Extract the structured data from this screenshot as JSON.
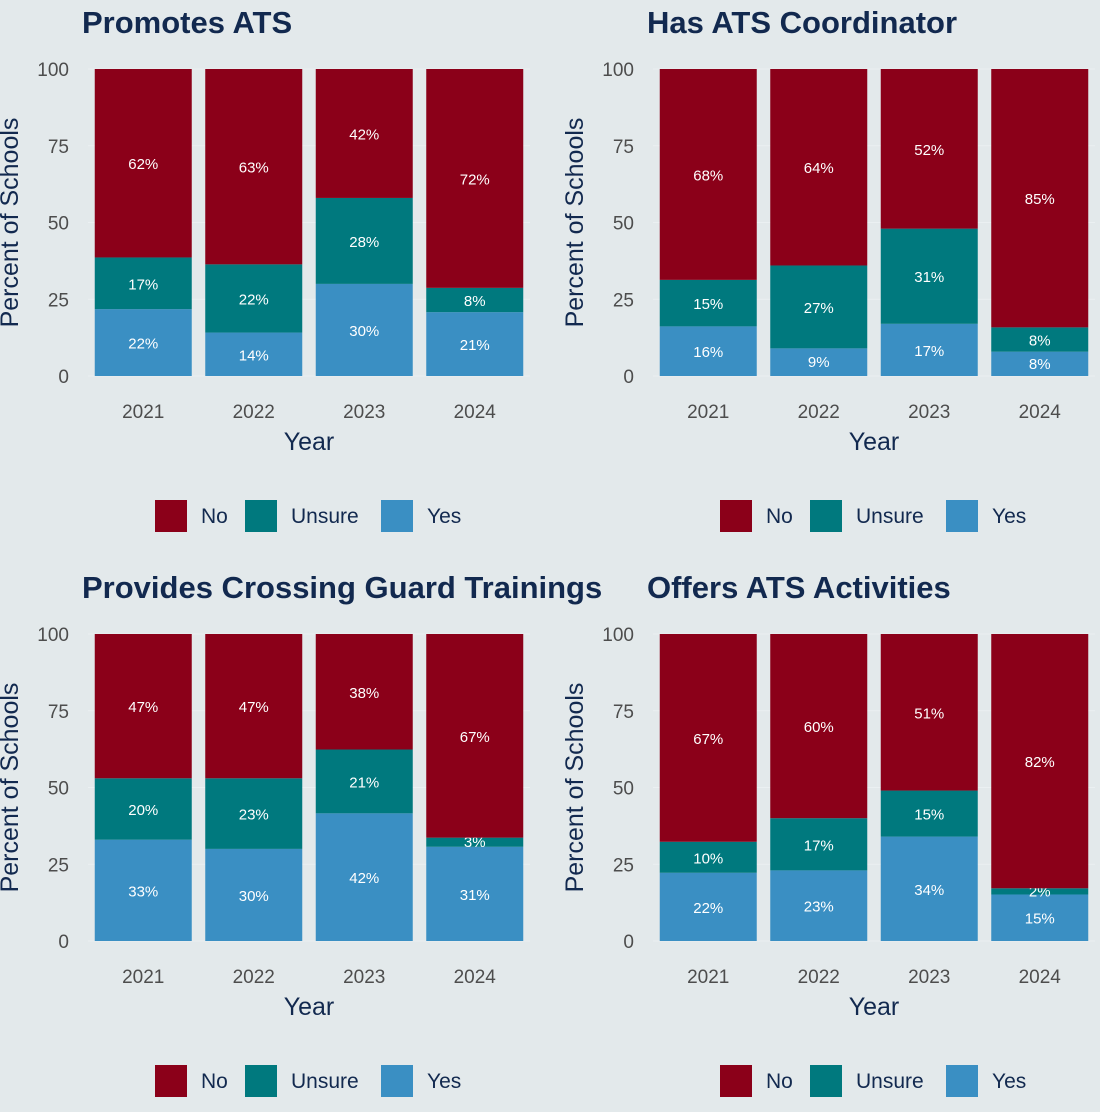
{
  "colors": {
    "No": "#8b0019",
    "Unsure": "#00797e",
    "Yes": "#3a8fc3",
    "background": "#e3e9eb",
    "title": "#12294f"
  },
  "legend_labels": [
    "No",
    "Unsure",
    "Yes"
  ],
  "chart_data": [
    {
      "type": "bar",
      "stacked": true,
      "title": "Promotes ATS",
      "xlabel": "Year",
      "ylabel": "Percent of Schools",
      "ylim": [
        0,
        100
      ],
      "yticks": [
        "0",
        "25",
        "50",
        "75",
        "100"
      ],
      "categories": [
        "2021",
        "2022",
        "2023",
        "2024"
      ],
      "series": [
        {
          "name": "Yes",
          "values": [
            22,
            14,
            30,
            21
          ],
          "labels": [
            "22%",
            "14%",
            "30%",
            "21%"
          ]
        },
        {
          "name": "Unsure",
          "values": [
            17,
            22,
            28,
            8
          ],
          "labels": [
            "17%",
            "22%",
            "28%",
            "8%"
          ]
        },
        {
          "name": "No",
          "values": [
            62,
            63,
            42,
            72
          ],
          "labels": [
            "62%",
            "63%",
            "42%",
            "72%"
          ]
        }
      ],
      "legend": "bottom"
    },
    {
      "type": "bar",
      "stacked": true,
      "title": "Has ATS Coordinator",
      "xlabel": "Year",
      "ylabel": "Percent of Schools",
      "ylim": [
        0,
        100
      ],
      "yticks": [
        "0",
        "25",
        "50",
        "75",
        "100"
      ],
      "categories": [
        "2021",
        "2022",
        "2023",
        "2024"
      ],
      "series": [
        {
          "name": "Yes",
          "values": [
            16,
            9,
            17,
            8
          ],
          "labels": [
            "16%",
            "9%",
            "17%",
            "8%"
          ]
        },
        {
          "name": "Unsure",
          "values": [
            15,
            27,
            31,
            8
          ],
          "labels": [
            "15%",
            "27%",
            "31%",
            "8%"
          ]
        },
        {
          "name": "No",
          "values": [
            68,
            64,
            52,
            85
          ],
          "labels": [
            "68%",
            "64%",
            "52%",
            "85%"
          ]
        }
      ],
      "legend": "bottom"
    },
    {
      "type": "bar",
      "stacked": true,
      "title": "Provides Crossing Guard Trainings",
      "xlabel": "Year",
      "ylabel": "Percent of Schools",
      "ylim": [
        0,
        100
      ],
      "yticks": [
        "0",
        "25",
        "50",
        "75",
        "100"
      ],
      "categories": [
        "2021",
        "2022",
        "2023",
        "2024"
      ],
      "series": [
        {
          "name": "Yes",
          "values": [
            33,
            30,
            42,
            31
          ],
          "labels": [
            "33%",
            "30%",
            "42%",
            "31%"
          ]
        },
        {
          "name": "Unsure",
          "values": [
            20,
            23,
            21,
            3
          ],
          "labels": [
            "20%",
            "23%",
            "21%",
            "3%"
          ]
        },
        {
          "name": "No",
          "values": [
            47,
            47,
            38,
            67
          ],
          "labels": [
            "47%",
            "47%",
            "38%",
            "67%"
          ]
        }
      ],
      "legend": "bottom"
    },
    {
      "type": "bar",
      "stacked": true,
      "title": "Offers ATS Activities",
      "xlabel": "Year",
      "ylabel": "Percent of Schools",
      "ylim": [
        0,
        100
      ],
      "yticks": [
        "0",
        "25",
        "50",
        "75",
        "100"
      ],
      "categories": [
        "2021",
        "2022",
        "2023",
        "2024"
      ],
      "series": [
        {
          "name": "Yes",
          "values": [
            22,
            23,
            34,
            15
          ],
          "labels": [
            "22%",
            "23%",
            "34%",
            "15%"
          ]
        },
        {
          "name": "Unsure",
          "values": [
            10,
            17,
            15,
            2
          ],
          "labels": [
            "10%",
            "17%",
            "15%",
            "2%"
          ]
        },
        {
          "name": "No",
          "values": [
            67,
            60,
            51,
            82
          ],
          "labels": [
            "67%",
            "60%",
            "51%",
            "82%"
          ]
        }
      ],
      "legend": "bottom"
    }
  ]
}
